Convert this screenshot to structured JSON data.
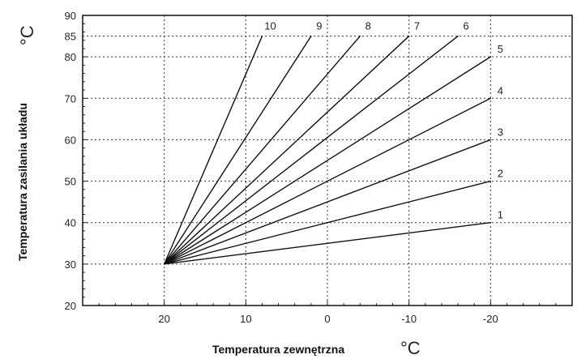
{
  "chart_data": {
    "type": "line",
    "xlabel": "Temperatura zewnętrzna",
    "ylabel": "Temperatura zasilania układu",
    "x_unit": "°C",
    "y_unit": "°C",
    "xlim": [
      30,
      -30
    ],
    "ylim": [
      20,
      90
    ],
    "x_ticks": [
      {
        "value": 20,
        "label": "20"
      },
      {
        "value": 10,
        "label": "10"
      },
      {
        "value": 0,
        "label": "0"
      },
      {
        "value": -10,
        "label": "-10"
      },
      {
        "value": -20,
        "label": "-20"
      }
    ],
    "y_ticks": [
      {
        "value": 20,
        "label": "20"
      },
      {
        "value": 30,
        "label": "30"
      },
      {
        "value": 40,
        "label": "40"
      },
      {
        "value": 50,
        "label": "50"
      },
      {
        "value": 60,
        "label": "60"
      },
      {
        "value": 70,
        "label": "70"
      },
      {
        "value": 80,
        "label": "80"
      },
      {
        "value": 85,
        "label": "85"
      },
      {
        "value": 90,
        "label": "90"
      }
    ],
    "grid": true,
    "series": [
      {
        "name": "1",
        "x": [
          20,
          -20
        ],
        "y": [
          30,
          40
        ]
      },
      {
        "name": "2",
        "x": [
          20,
          -20
        ],
        "y": [
          30,
          50
        ]
      },
      {
        "name": "3",
        "x": [
          20,
          -20
        ],
        "y": [
          30,
          60
        ]
      },
      {
        "name": "4",
        "x": [
          20,
          -20
        ],
        "y": [
          30,
          70
        ]
      },
      {
        "name": "5",
        "x": [
          20,
          -20
        ],
        "y": [
          30,
          80
        ]
      },
      {
        "name": "6",
        "x": [
          20,
          -16
        ],
        "y": [
          30,
          85
        ]
      },
      {
        "name": "7",
        "x": [
          20,
          -10
        ],
        "y": [
          30,
          85
        ]
      },
      {
        "name": "8",
        "x": [
          20,
          -4
        ],
        "y": [
          30,
          85
        ]
      },
      {
        "name": "9",
        "x": [
          20,
          2
        ],
        "y": [
          30,
          85
        ]
      },
      {
        "name": "10",
        "x": [
          20,
          8
        ],
        "y": [
          30,
          85
        ]
      }
    ]
  }
}
